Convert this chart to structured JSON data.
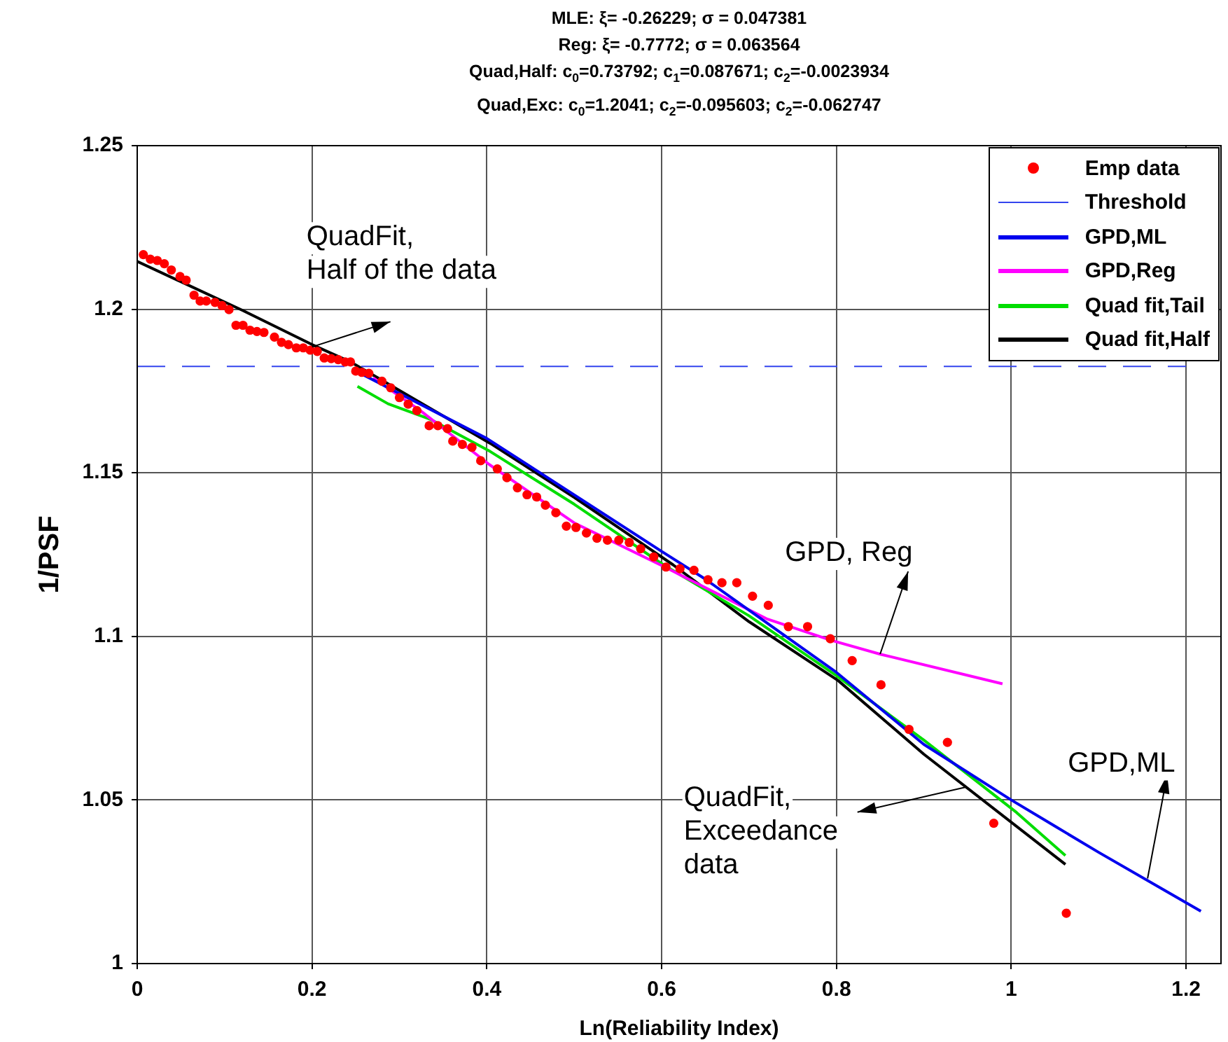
{
  "chart_data": {
    "type": "line",
    "title": "MLE: ξ= -0.26229; σ = 0.047381\nReg: ξ= -0.7772; σ = 0.063564\nQuad,Half: c$_{0}$=0.73792; c$_{1}$=0.087671; c$_{2}$=-0.0023934\nQuad,Exc: c$_{0}$=1.2041; c$_{2}$=-0.095603; c$_{2}$=-0.062747",
    "xlabel": "Ln(Reliability Index)",
    "ylabel": "1/PSF",
    "xlim": [
      0,
      1.24
    ],
    "xticks": [
      0,
      0.2,
      0.4,
      0.6,
      0.8,
      1,
      1.2
    ],
    "ylim": [
      1,
      1.25
    ],
    "yticks": [
      1,
      1.05,
      1.1,
      1.15,
      1.2,
      1.25
    ],
    "grid": true,
    "legend": "top right",
    "series": [
      {
        "name": "Emp data",
        "type": "scatter",
        "marker": "circle",
        "color": "#ff0000",
        "x": [
          0.007,
          0.015,
          0.023,
          0.031,
          0.039,
          0.049,
          0.056,
          0.065,
          0.072,
          0.079,
          0.089,
          0.097,
          0.105,
          0.113,
          0.121,
          0.129,
          0.137,
          0.145,
          0.157,
          0.165,
          0.173,
          0.182,
          0.19,
          0.198,
          0.206,
          0.214,
          0.222,
          0.23,
          0.238,
          0.244,
          0.25,
          0.257,
          0.265,
          0.28,
          0.29,
          0.3,
          0.31,
          0.32,
          0.334,
          0.344,
          0.355,
          0.361,
          0.372,
          0.383,
          0.393,
          0.412,
          0.423,
          0.435,
          0.446,
          0.457,
          0.467,
          0.479,
          0.491,
          0.502,
          0.514,
          0.526,
          0.538,
          0.551,
          0.563,
          0.576,
          0.591,
          0.605,
          0.621,
          0.637,
          0.653,
          0.669,
          0.686,
          0.704,
          0.722,
          0.745,
          0.767,
          0.793,
          0.818,
          0.851,
          0.883,
          0.927,
          0.98,
          1.063
        ],
        "values": [
          1.2167,
          1.2153,
          1.2149,
          1.2139,
          1.212,
          1.21,
          1.2089,
          1.2043,
          1.2025,
          1.2025,
          1.2021,
          1.2011,
          1.1999,
          1.1951,
          1.1951,
          1.1936,
          1.1932,
          1.1929,
          1.1915,
          1.1899,
          1.1892,
          1.1882,
          1.1882,
          1.1875,
          1.1871,
          1.1851,
          1.1849,
          1.1846,
          1.1839,
          1.1839,
          1.1811,
          1.1807,
          1.1804,
          1.178,
          1.176,
          1.173,
          1.171,
          1.169,
          1.1644,
          1.1644,
          1.1635,
          1.1597,
          1.1587,
          1.1578,
          1.1537,
          1.1512,
          1.1485,
          1.1454,
          1.1433,
          1.1426,
          1.1401,
          1.1378,
          1.1337,
          1.1333,
          1.1316,
          1.13,
          1.1294,
          1.1294,
          1.1287,
          1.1268,
          1.1243,
          1.1212,
          1.1207,
          1.1202,
          1.1173,
          1.1164,
          1.1164,
          1.1123,
          1.1095,
          1.103,
          1.103,
          1.0993,
          1.0926,
          1.0852,
          1.0716,
          1.0676,
          1.0429,
          1.0154
        ]
      },
      {
        "name": "Threshold",
        "line_style": "dashed",
        "color": "#3344ee",
        "x": [
          0,
          1.2
        ],
        "values": [
          1.1825,
          1.1825
        ]
      },
      {
        "name": "GPD,ML",
        "color": "#0000ee",
        "x": [
          0.25,
          0.4,
          0.6,
          0.65,
          0.7,
          0.8,
          0.9,
          1,
          1.05,
          1.1,
          1.217
        ],
        "values": [
          1.1811,
          1.1605,
          1.126,
          1.1175,
          1.108,
          1.089,
          1.067,
          1.05,
          1.042,
          1.034,
          1.016
        ]
      },
      {
        "name": "GPD,Reg",
        "color": "#ff00ff",
        "x": [
          0.27,
          0.324,
          0.403,
          0.5,
          0.602,
          0.72,
          0.794,
          0.851,
          0.99
        ],
        "values": [
          1.179,
          1.169,
          1.1525,
          1.1347,
          1.1214,
          1.1054,
          1.0988,
          1.0945,
          1.0855
        ]
      },
      {
        "name": "Quad fit,Tail",
        "color": "#00dd00",
        "x": [
          0.252,
          0.287,
          0.335,
          0.404,
          0.5,
          0.602,
          0.7,
          0.8,
          0.9,
          1.006,
          1.062
        ],
        "values": [
          1.1764,
          1.1711,
          1.1664,
          1.1565,
          1.1404,
          1.1219,
          1.1063,
          1.088,
          1.0683,
          1.0462,
          1.033
        ]
      },
      {
        "name": "Quad fit,Half",
        "color": "#000000",
        "x": [
          0,
          0.121,
          0.2,
          0.244,
          0.404,
          0.5,
          0.613,
          0.7,
          0.802,
          0.9,
          1.062
        ],
        "values": [
          1.2146,
          1.1996,
          1.1892,
          1.1839,
          1.159,
          1.1425,
          1.1219,
          1.1045,
          1.0865,
          1.064,
          1.0303
        ]
      }
    ],
    "annotations": [
      {
        "text": "QuadFit,\nHalf of the data",
        "x": 0.2,
        "y": 1.1885
      },
      {
        "text": "GPD, Reg",
        "x": 0.85,
        "y": 1.0946
      },
      {
        "text": "GPD,ML",
        "x": 1.156,
        "y": 1.026
      },
      {
        "text": "QuadFit,\nExceedance\ndata",
        "x": 0.949,
        "y": 1.054
      }
    ]
  }
}
